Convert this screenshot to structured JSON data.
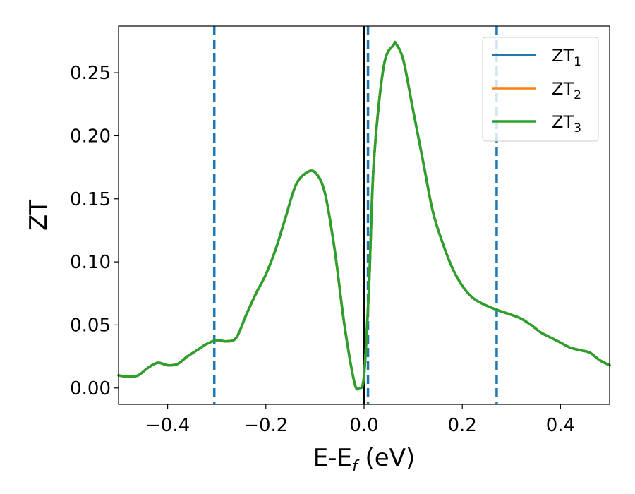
{
  "chart_data": {
    "type": "line",
    "title": "",
    "xlabel": {
      "main": "E-E",
      "sub": "f",
      "suffix": " (eV)"
    },
    "ylabel": "ZT",
    "xlim": [
      -0.5,
      0.5
    ],
    "ylim": [
      -0.013,
      0.287
    ],
    "grid": false,
    "legend_position": "top-right",
    "x_ticks": [
      {
        "value": -0.4,
        "label": "−0.4"
      },
      {
        "value": -0.2,
        "label": "−0.2"
      },
      {
        "value": 0.0,
        "label": "0.0"
      },
      {
        "value": 0.2,
        "label": "0.2"
      },
      {
        "value": 0.4,
        "label": "0.4"
      }
    ],
    "y_ticks": [
      {
        "value": 0.0,
        "label": "0.00"
      },
      {
        "value": 0.05,
        "label": "0.05"
      },
      {
        "value": 0.1,
        "label": "0.10"
      },
      {
        "value": 0.15,
        "label": "0.15"
      },
      {
        "value": 0.2,
        "label": "0.20"
      },
      {
        "value": 0.25,
        "label": "0.25"
      }
    ],
    "vertical_lines": [
      {
        "x": -0.305,
        "style": "dashed",
        "color": "#1f77b4"
      },
      {
        "x": 0.0,
        "style": "solid",
        "color": "#000000"
      },
      {
        "x": 0.008,
        "style": "dashed",
        "color": "#1f77b4"
      },
      {
        "x": 0.27,
        "style": "dashed",
        "color": "#1f77b4"
      }
    ],
    "series": [
      {
        "name": "ZT",
        "sub": "1",
        "color": "#1f77b4"
      },
      {
        "name": "ZT",
        "sub": "2",
        "color": "#ff7f0e"
      },
      {
        "name": "ZT",
        "sub": "3",
        "color": "#2ca02c"
      }
    ],
    "x": [
      -0.5,
      -0.48,
      -0.46,
      -0.44,
      -0.42,
      -0.4,
      -0.38,
      -0.36,
      -0.34,
      -0.32,
      -0.3,
      -0.28,
      -0.26,
      -0.24,
      -0.22,
      -0.2,
      -0.18,
      -0.16,
      -0.14,
      -0.12,
      -0.1,
      -0.08,
      -0.06,
      -0.04,
      -0.02,
      -0.01,
      0.0,
      0.01,
      0.02,
      0.04,
      0.06,
      0.065,
      0.08,
      0.1,
      0.12,
      0.14,
      0.16,
      0.18,
      0.2,
      0.22,
      0.24,
      0.27,
      0.3,
      0.32,
      0.34,
      0.36,
      0.38,
      0.4,
      0.42,
      0.44,
      0.46,
      0.48,
      0.5
    ],
    "y": [
      0.01,
      0.009,
      0.01,
      0.016,
      0.02,
      0.018,
      0.019,
      0.025,
      0.03,
      0.035,
      0.038,
      0.037,
      0.04,
      0.058,
      0.075,
      0.09,
      0.11,
      0.135,
      0.16,
      0.17,
      0.171,
      0.155,
      0.11,
      0.05,
      0.005,
      0.0,
      0.01,
      0.08,
      0.18,
      0.255,
      0.272,
      0.273,
      0.26,
      0.22,
      0.18,
      0.14,
      0.115,
      0.095,
      0.081,
      0.072,
      0.067,
      0.062,
      0.058,
      0.055,
      0.05,
      0.044,
      0.04,
      0.036,
      0.032,
      0.03,
      0.028,
      0.022,
      0.018
    ]
  }
}
